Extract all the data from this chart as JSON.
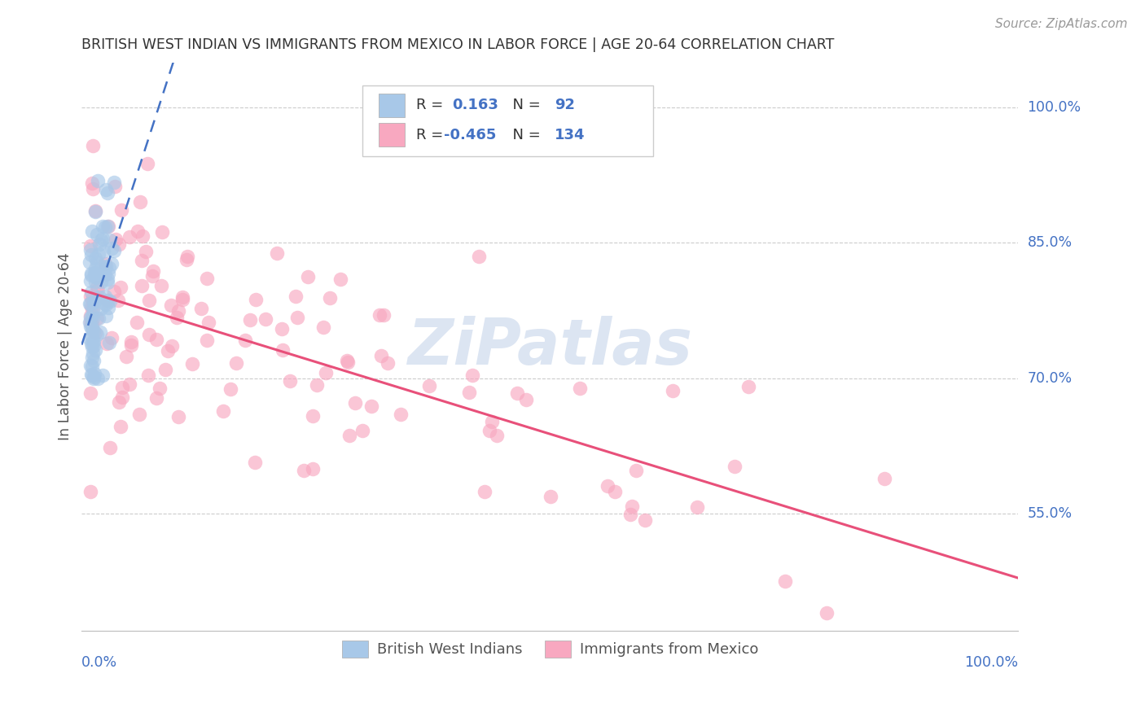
{
  "title": "BRITISH WEST INDIAN VS IMMIGRANTS FROM MEXICO IN LABOR FORCE | AGE 20-64 CORRELATION CHART",
  "source": "Source: ZipAtlas.com",
  "ylabel": "In Labor Force | Age 20-64",
  "xlim": [
    -0.008,
    1.008
  ],
  "ylim": [
    0.42,
    1.05
  ],
  "ytick_vals": [
    0.55,
    0.7,
    0.85,
    1.0
  ],
  "ytick_labels": [
    "55.0%",
    "70.0%",
    "85.0%",
    "100.0%"
  ],
  "blue_color": "#A8C8E8",
  "blue_edge_color": "#6090C0",
  "pink_color": "#F8A8C0",
  "pink_edge_color": "#E06080",
  "blue_line_color": "#4472C4",
  "pink_line_color": "#E8507A",
  "axis_label_color": "#4472C4",
  "grid_color": "#CCCCCC",
  "watermark_color": "#C8D8F0",
  "r1": 0.163,
  "n1": 92,
  "r2": -0.465,
  "n2": 134,
  "legend_box_color": "#E8E8F0"
}
